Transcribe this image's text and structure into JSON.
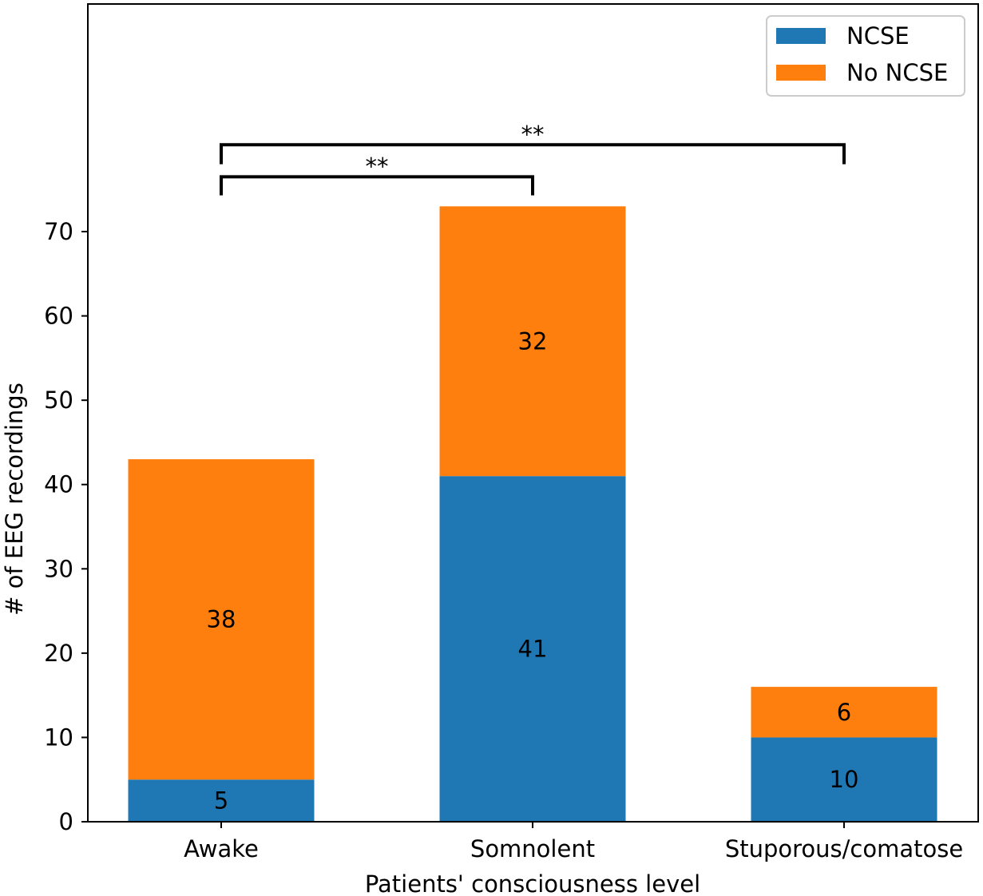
{
  "chart_data": {
    "type": "bar",
    "stacked": true,
    "categories": [
      "Awake",
      "Somnolent",
      "Stuporous/comatose"
    ],
    "series": [
      {
        "name": "NCSE",
        "values": [
          5,
          41,
          10
        ],
        "color": "#1f77b4"
      },
      {
        "name": "No NCSE",
        "values": [
          38,
          32,
          6
        ],
        "color": "#ff7f0e"
      }
    ],
    "xlabel": "Patients' consciousness level",
    "ylabel": "# of EEG recordings",
    "ylim": [
      0,
      97
    ],
    "yticks": [
      0,
      10,
      20,
      30,
      40,
      50,
      60,
      70
    ],
    "grid": false,
    "legend": "top-right",
    "annotations": [
      {
        "from": "Awake",
        "to": "Somnolent",
        "label": "**",
        "y": 76.5,
        "tip": 74.3
      },
      {
        "from": "Awake",
        "to": "Stuporous/comatose",
        "label": "**",
        "y": 80.3,
        "tip": 78.0
      }
    ]
  }
}
